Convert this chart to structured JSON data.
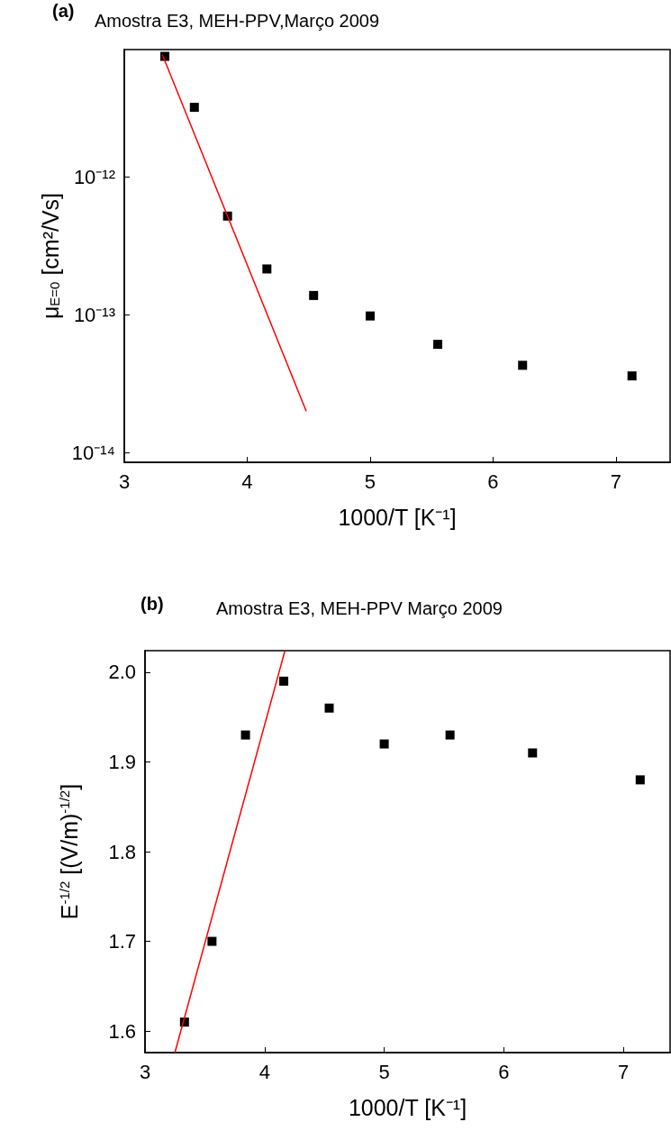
{
  "chart_data": [
    {
      "type": "scatter",
      "title": "Amostra E3, MEH-PPV,Março 2009",
      "annotations": [
        "(a)"
      ],
      "xlabel": "1000/T [K⁻¹]",
      "ylabel": "μ$_{E=0}$ [cm²/Vs]",
      "log": "y",
      "marker": "square",
      "xlim": [
        3,
        7.44
      ],
      "xticks": [
        3,
        4,
        5,
        6,
        7
      ],
      "ylim": [
        8.5e-15,
        8.4e-12
      ],
      "yticks": [
        {
          "value": 1e-14,
          "label": "10⁻¹⁴"
        },
        {
          "value": 1e-13,
          "label": "10⁻¹³"
        },
        {
          "value": 1e-12,
          "label": "10⁻¹²"
        }
      ],
      "series": [
        {
          "color": "#000000",
          "x": [
            3.33,
            3.57,
            3.84,
            4.16,
            4.54,
            5.0,
            5.55,
            6.24,
            7.13
          ],
          "values": [
            7.5e-12,
            3.2e-12,
            5.2e-13,
            2.15e-13,
            1.38e-13,
            9.8e-14,
            6.1e-14,
            4.3e-14,
            3.6e-14
          ]
        },
        {
          "type": "line",
          "marker": "none",
          "color": "#ff0000",
          "x": [
            3.31,
            4.48
          ],
          "values": [
            7.7e-12,
            2e-14
          ]
        }
      ]
    },
    {
      "type": "scatter",
      "title": "Amostra E3, MEH-PPV Março 2009",
      "annotations": [
        "(b)"
      ],
      "xlabel": "1000/T [K⁻¹]",
      "ylabel": "E$^{-1/2}$ [(V/m)$^{-1/2}$]",
      "marker": "square",
      "xlim": [
        3,
        7.39
      ],
      "xticks": [
        3,
        4,
        5,
        6,
        7
      ],
      "ylim": [
        1.576,
        2.024
      ],
      "yticks": [
        {
          "value": 1.6,
          "label": "1.6"
        },
        {
          "value": 1.7,
          "label": "1.7"
        },
        {
          "value": 1.8,
          "label": "1.8"
        },
        {
          "value": 1.9,
          "label": "1.9"
        },
        {
          "value": 2.0,
          "label": "2.0"
        }
      ],
      "series": [
        {
          "color": "#000000",
          "x": [
            3.33,
            3.56,
            3.84,
            4.16,
            4.54,
            5.0,
            5.55,
            6.24,
            7.14
          ],
          "values": [
            1.61,
            1.7,
            1.93,
            1.99,
            1.96,
            1.92,
            1.93,
            1.91,
            1.88
          ]
        },
        {
          "type": "line",
          "marker": "none",
          "color": "#ff0000",
          "x": [
            3.25,
            4.17
          ],
          "values": [
            1.576,
            2.024
          ]
        }
      ]
    }
  ]
}
